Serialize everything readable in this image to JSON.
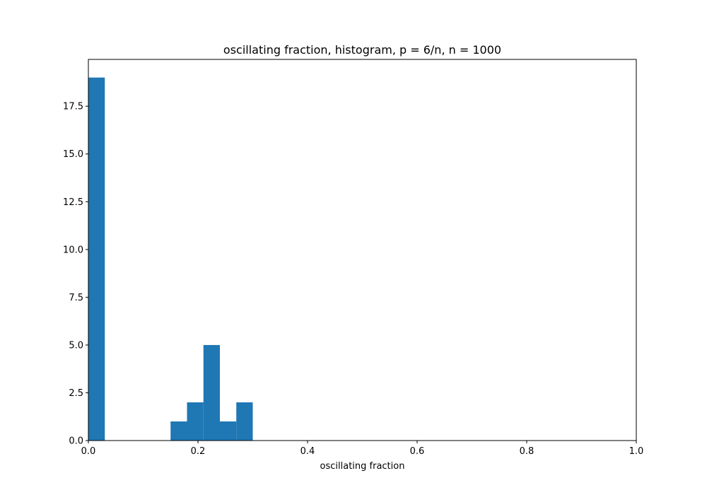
{
  "chart_data": {
    "type": "bar",
    "title": "oscillating fraction, histogram, p = 6/n, n = 1000",
    "xlabel": "oscillating fraction",
    "ylabel": "",
    "xlim": [
      0,
      1
    ],
    "ylim": [
      0,
      19.95
    ],
    "xticks": [
      "0.0",
      "0.2",
      "0.4",
      "0.6",
      "0.8",
      "1.0"
    ],
    "yticks": [
      "0.0",
      "2.5",
      "5.0",
      "7.5",
      "10.0",
      "12.5",
      "15.0",
      "17.5"
    ],
    "bar_color": "#1f77b4",
    "grid": false,
    "legend": "none",
    "bins": [
      {
        "x0": 0.0,
        "x1": 0.03,
        "count": 19
      },
      {
        "x0": 0.15,
        "x1": 0.18,
        "count": 1
      },
      {
        "x0": 0.18,
        "x1": 0.21,
        "count": 2
      },
      {
        "x0": 0.21,
        "x1": 0.24,
        "count": 5
      },
      {
        "x0": 0.24,
        "x1": 0.27,
        "count": 1
      },
      {
        "x0": 0.27,
        "x1": 0.3,
        "count": 2
      }
    ]
  }
}
